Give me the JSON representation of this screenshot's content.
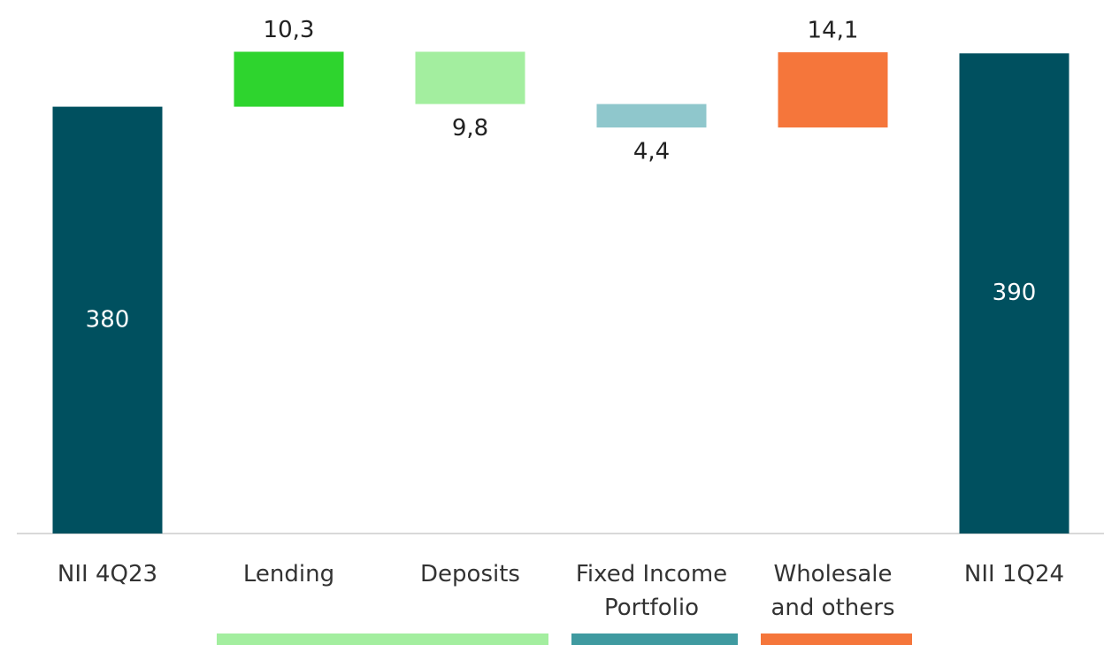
{
  "chart_data": {
    "type": "waterfall",
    "categories": [
      "NII 4Q23",
      "Lending",
      "Deposits",
      "Fixed Income Portfolio",
      "Wholesale and others",
      "NII 1Q24"
    ],
    "values": [
      380,
      10.3,
      -9.8,
      -4.4,
      14.1,
      390
    ],
    "value_labels": [
      "380",
      "10,3",
      "9,8",
      "4,4",
      "14,1",
      "390"
    ],
    "colors": [
      "#00505f",
      "#2ed42e",
      "#a3ee9f",
      "#8fc7cc",
      "#f5763b",
      "#00505f"
    ],
    "ylim": [
      300,
      400
    ]
  }
}
